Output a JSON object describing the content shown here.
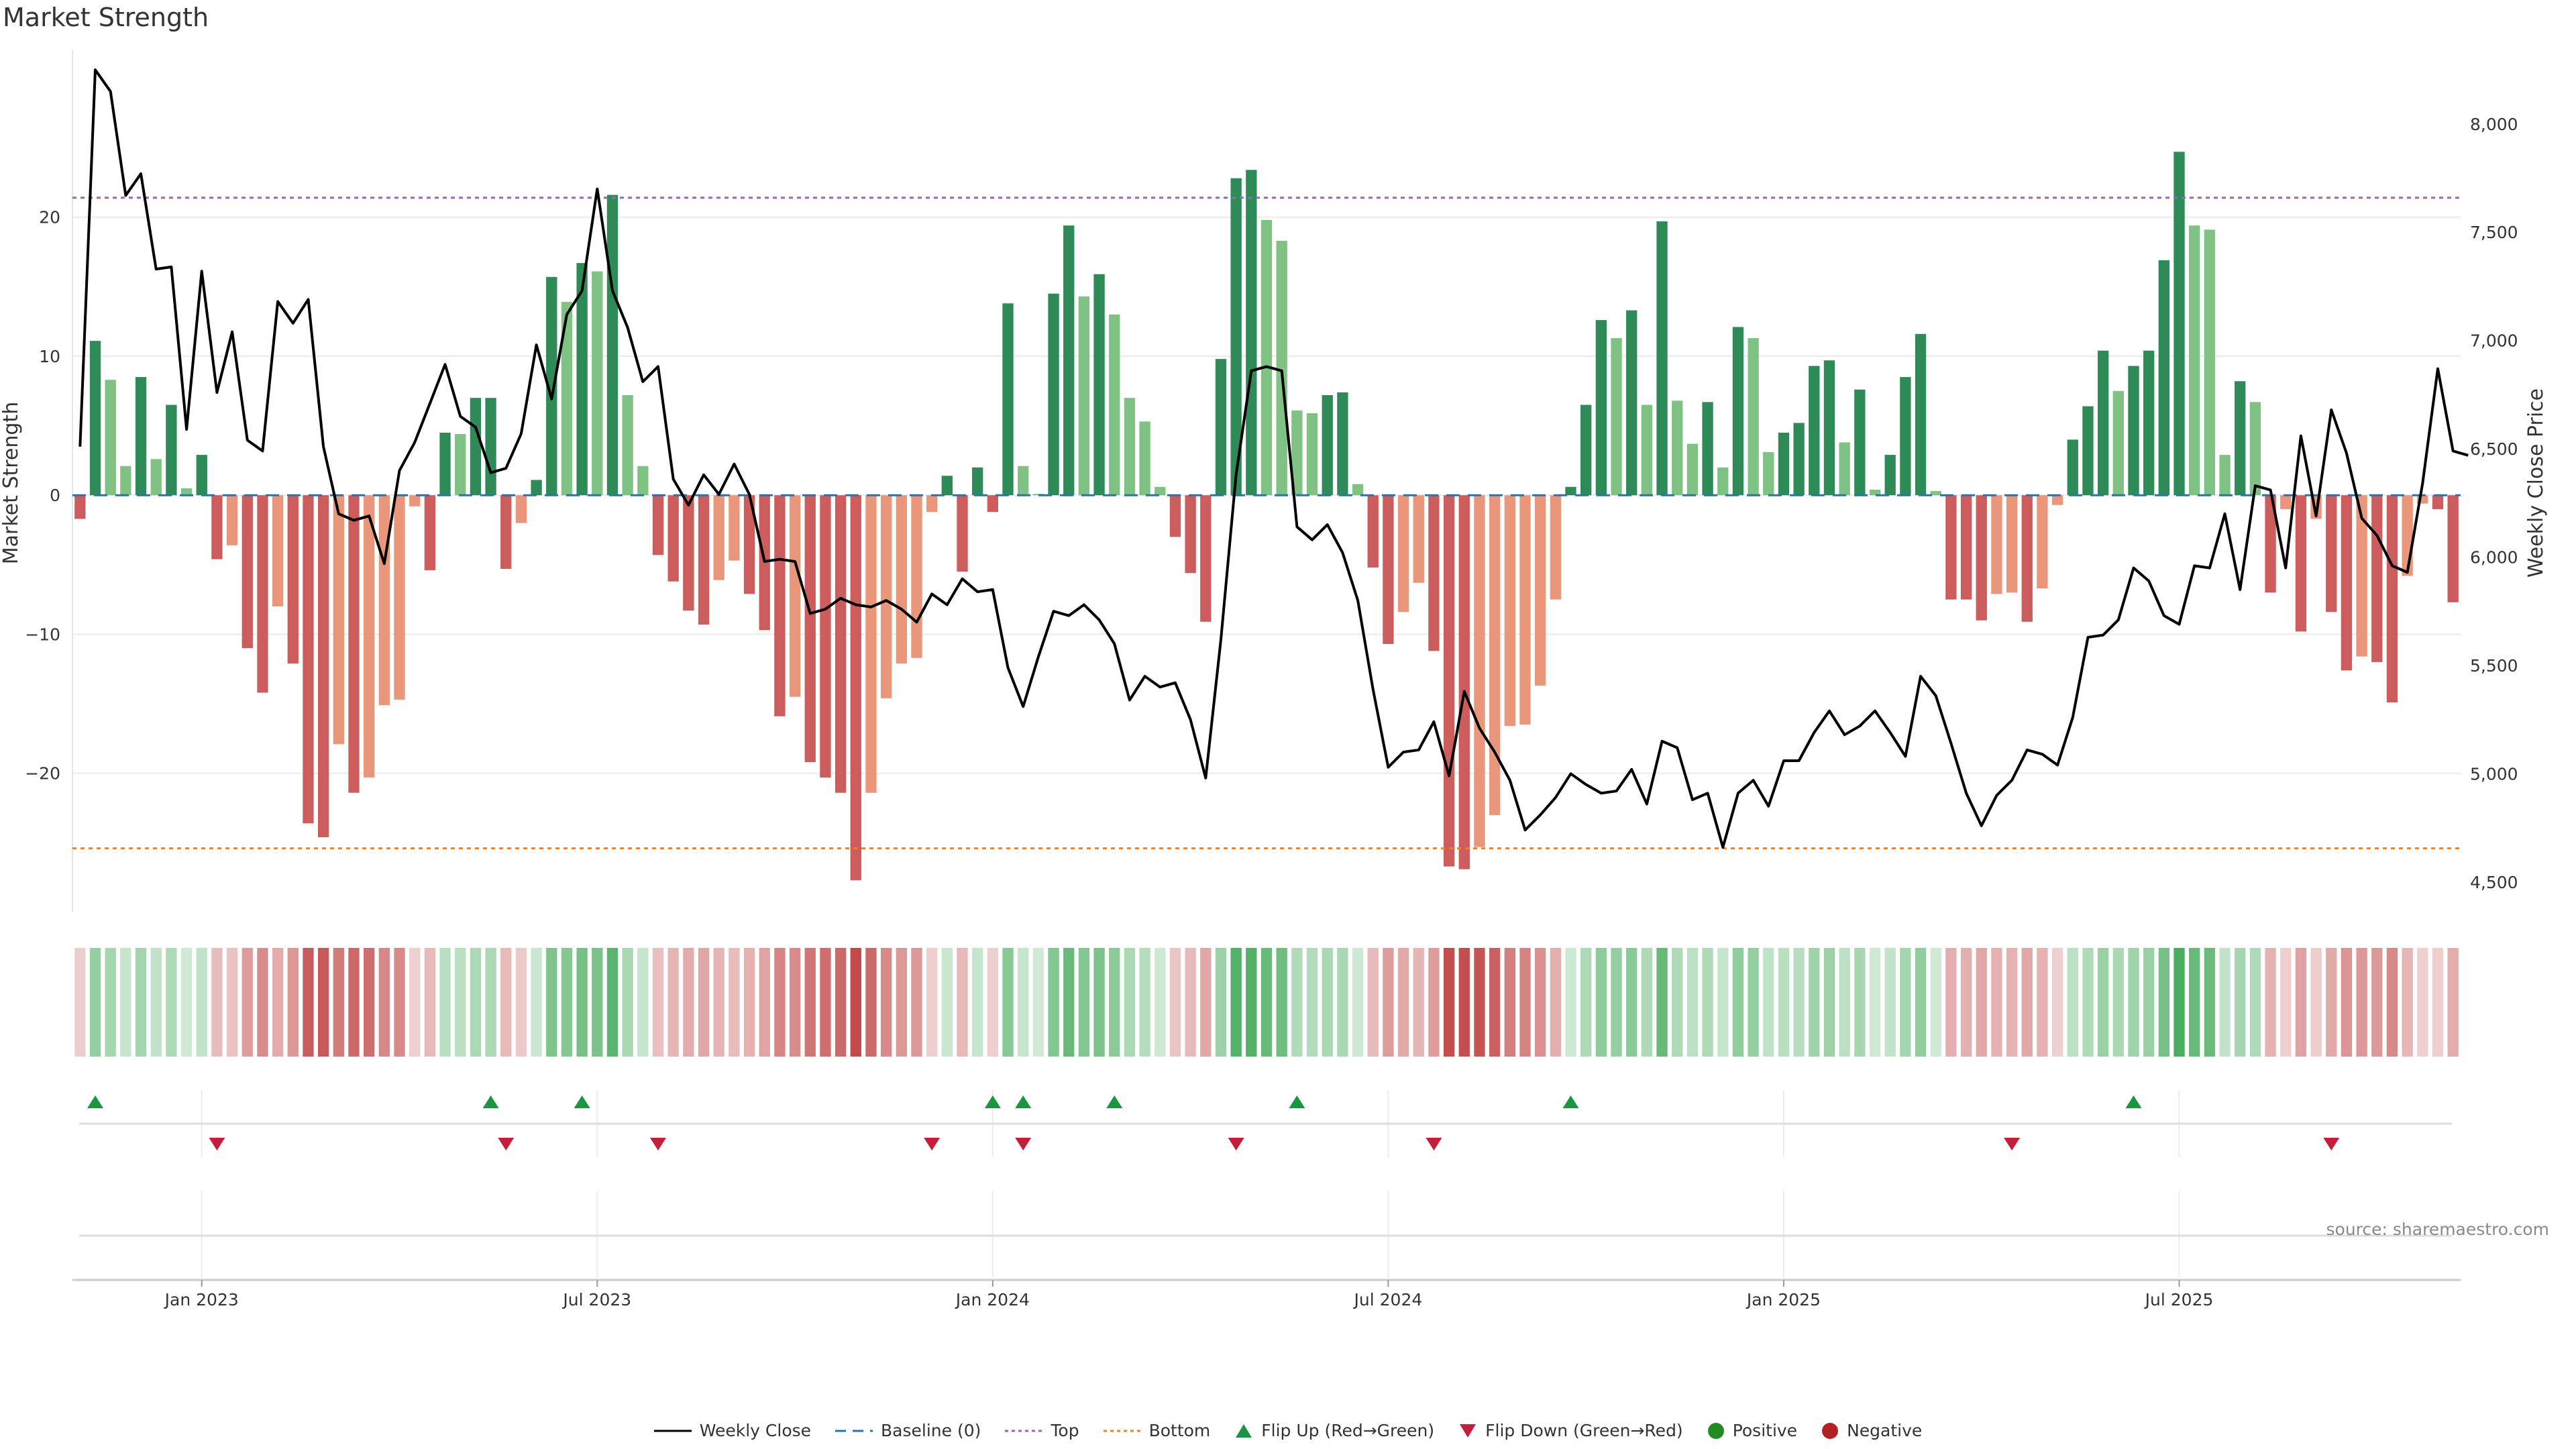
{
  "title": "Market Strength",
  "source": "source: sharemaestro.com",
  "legend": [
    {
      "label": "Weekly Close",
      "key": "line"
    },
    {
      "label": "Baseline (0)",
      "key": "baseline"
    },
    {
      "label": "Top",
      "key": "top"
    },
    {
      "label": "Bottom",
      "key": "bottom"
    },
    {
      "label": "Flip Up (Red→Green)",
      "key": "flipup"
    },
    {
      "label": "Flip Down (Green→Red)",
      "key": "flipdown"
    },
    {
      "label": "Positive",
      "key": "positive"
    },
    {
      "label": "Negative",
      "key": "negative"
    }
  ],
  "colors": {
    "pos_dark": "#2e8b57",
    "pos_light": "#7fc283",
    "neg_dark": "#cd5c5c",
    "neg_light": "#e9967a",
    "line": "#000000",
    "baseline": "#1f77b4",
    "top": "#9467bd",
    "bottom": "#ff7f0e",
    "flip_up": "#1a9641",
    "flip_down": "#c41e3a",
    "positive": "#228b22",
    "negative": "#b22222"
  },
  "chart_data": {
    "type": "bar",
    "title": "Market Strength",
    "ylabel": "Market Strength",
    "y2label": "Weekly Close Price",
    "ylim": [
      -30,
      32
    ],
    "y2lim": [
      4360,
      8340
    ],
    "yticks": [
      -20,
      -10,
      0,
      10,
      20
    ],
    "y2ticks": [
      4500,
      5000,
      5500,
      6000,
      6500,
      7000,
      7500,
      8000
    ],
    "y2ticklabels": [
      "4,500",
      "5,000",
      "5,500",
      "6,000",
      "6,500",
      "7,000",
      "7,500",
      "8,000"
    ],
    "xticks": [
      {
        "label": "Jan 2023",
        "week": 8
      },
      {
        "label": "Jul 2023",
        "week": 34
      },
      {
        "label": "Jan 2024",
        "week": 60
      },
      {
        "label": "Jul 2024",
        "week": 86
      },
      {
        "label": "Jan 2025",
        "week": 112
      },
      {
        "label": "Jul 2025",
        "week": 138
      }
    ],
    "start": "2022-11",
    "top_level": 21.4,
    "bottom_level": -25.4,
    "strength": [
      -1.7,
      11.1,
      8.3,
      2.1,
      8.5,
      2.6,
      6.5,
      0.5,
      2.9,
      -4.6,
      -3.6,
      -11.0,
      -14.2,
      -8.0,
      -12.1,
      -23.6,
      -24.6,
      -17.9,
      -21.4,
      -20.3,
      -15.1,
      -14.7,
      -0.8,
      -5.4,
      4.5,
      4.4,
      7.0,
      7.0,
      -5.3,
      -2.0,
      1.1,
      15.7,
      13.9,
      16.7,
      16.1,
      21.6,
      7.2,
      2.1,
      -4.3,
      -6.2,
      -8.3,
      -9.3,
      -6.1,
      -4.7,
      -7.1,
      -9.7,
      -15.9,
      -14.5,
      -19.2,
      -20.3,
      -21.4,
      -27.7,
      -21.4,
      -14.6,
      -12.1,
      -11.7,
      -1.2,
      1.4,
      -5.5,
      2.0,
      -1.2,
      13.8,
      2.1,
      0.1,
      14.5,
      19.4,
      14.3,
      15.9,
      13.0,
      7.0,
      5.3,
      0.6,
      -3.0,
      -5.6,
      -9.1,
      9.8,
      22.8,
      23.4,
      19.8,
      18.3,
      6.1,
      5.9,
      7.2,
      7.4,
      0.8,
      -5.2,
      -10.7,
      -8.4,
      -6.3,
      -11.2,
      -26.7,
      -26.9,
      -25.3,
      -23.0,
      -16.6,
      -16.5,
      -13.7,
      -7.5,
      0.6,
      6.5,
      12.6,
      11.3,
      13.3,
      6.5,
      19.7,
      6.8,
      3.7,
      6.7,
      2.0,
      12.1,
      11.3,
      3.1,
      4.5,
      5.2,
      9.3,
      9.7,
      3.8,
      7.6,
      0.4,
      2.9,
      8.5,
      11.6,
      0.3,
      -7.5,
      -7.5,
      -9.0,
      -7.1,
      -7.0,
      -9.1,
      -6.7,
      -0.7,
      4.0,
      6.4,
      10.4,
      7.5,
      9.3,
      10.4,
      16.9,
      24.7,
      19.4,
      19.1,
      2.9,
      8.2,
      6.7,
      -7.0,
      -1.0,
      -9.8,
      -1.7,
      -8.4,
      -12.6,
      -11.6,
      -12.0,
      -14.9,
      -5.8,
      -0.6,
      -1.0,
      -7.7
    ],
    "close": [
      6510,
      8250,
      8150,
      7670,
      7770,
      7330,
      7340,
      6590,
      7320,
      6760,
      7040,
      6540,
      6490,
      7180,
      7080,
      7190,
      6510,
      6200,
      6170,
      6190,
      5970,
      6400,
      6530,
      6710,
      6890,
      6650,
      6600,
      6390,
      6410,
      6570,
      6980,
      6730,
      7120,
      7230,
      7700,
      7230,
      7060,
      6810,
      6880,
      6360,
      6240,
      6380,
      6290,
      6430,
      6290,
      5980,
      5990,
      5980,
      5740,
      5760,
      5810,
      5780,
      5770,
      5800,
      5760,
      5700,
      5830,
      5780,
      5900,
      5840,
      5850,
      5490,
      5310,
      5540,
      5750,
      5730,
      5780,
      5710,
      5600,
      5340,
      5450,
      5400,
      5420,
      5250,
      4980,
      5620,
      6380,
      6860,
      6880,
      6860,
      6140,
      6080,
      6150,
      6020,
      5800,
      5390,
      5030,
      5100,
      5110,
      5240,
      4990,
      5380,
      5210,
      5100,
      4970,
      4740,
      4810,
      4890,
      5000,
      4950,
      4910,
      4920,
      5020,
      4860,
      5150,
      5120,
      4880,
      4910,
      4660,
      4910,
      4970,
      4850,
      5060,
      5060,
      5190,
      5290,
      5180,
      5220,
      5290,
      5190,
      5080,
      5450,
      5360,
      5140,
      4910,
      4760,
      4900,
      4970,
      5110,
      5090,
      5040,
      5260,
      5630,
      5640,
      5710,
      5950,
      5890,
      5730,
      5690,
      5960,
      5950,
      6200,
      5850,
      6330,
      6310,
      5950,
      6560,
      6190,
      6680,
      6480,
      6180,
      6100,
      5960,
      5930,
      6340,
      6870,
      6490,
      6470
    ],
    "flip_up_weeks": [
      1,
      27,
      33,
      60,
      62,
      68,
      80,
      98,
      135
    ],
    "flip_down_weeks": [
      9,
      28,
      38,
      56,
      62,
      76,
      89,
      127,
      148
    ]
  }
}
